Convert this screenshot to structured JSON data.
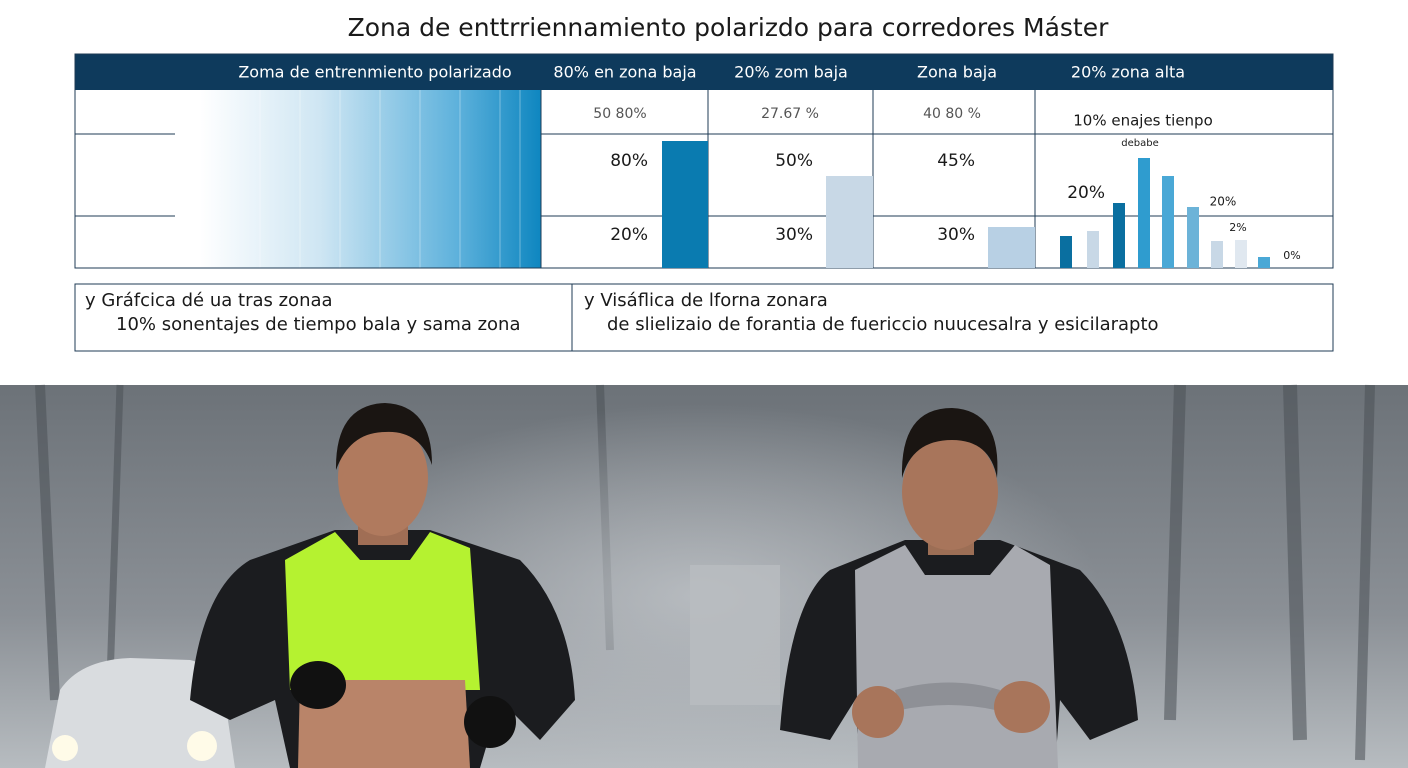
{
  "header": {
    "title": "Zona de enttrriennamiento polarizdo para corredores Máster"
  },
  "table": {
    "columns": [
      "Zoma de entrenmiento polarizado",
      "80% en zona baja",
      "20% zom baja",
      "Zona baja",
      "20% zona alta"
    ],
    "rows": [
      [
        "50 80%",
        "27.67 %",
        "40 80 %",
        "10% enajes tienpo"
      ],
      [
        "80%",
        "50%",
        "45%",
        "20%"
      ],
      [
        "20%",
        "30%",
        "30%"
      ]
    ],
    "note": "debabe",
    "bar_labels": [
      "20%",
      "2%",
      "0%"
    ]
  },
  "notes": [
    {
      "lines": [
        "y Gráfcica dé ua tras zonaa",
        "10% sonentajes de tiempo bala y sama zona"
      ]
    },
    {
      "lines": [
        "y Visáflica de lforna zonara",
        "de slielizaio de forantia de fuericcio nuucesalra y esicilarapto"
      ]
    }
  ]
}
